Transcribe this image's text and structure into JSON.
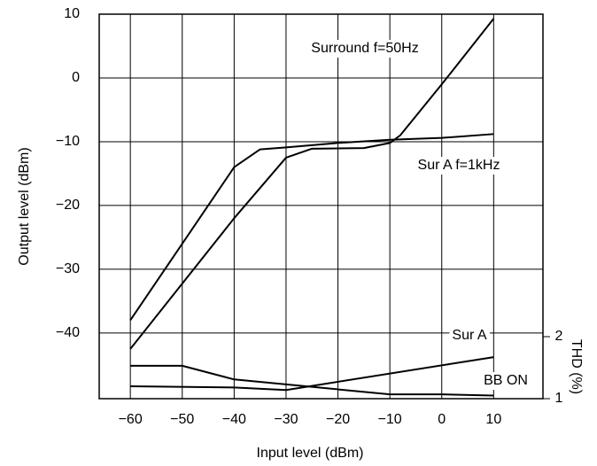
{
  "chart_data": {
    "type": "line",
    "x_label": "Input level (dBm)",
    "y_label": "Output level (dBm)",
    "y2_label": "THD (%)",
    "xlim": [
      -66,
      19.5
    ],
    "xticks": [
      {
        "value": -60,
        "label": "−60"
      },
      {
        "value": -50,
        "label": "−50"
      },
      {
        "value": -40,
        "label": "−40"
      },
      {
        "value": -30,
        "label": "−30"
      },
      {
        "value": -20,
        "label": "−20"
      },
      {
        "value": -10,
        "label": "−10"
      },
      0,
      10
    ],
    "ylim": [
      -50.3,
      10
    ],
    "yticks": [
      {
        "value": -40,
        "label": "−40"
      },
      {
        "value": -30,
        "label": "−30"
      },
      {
        "value": -20,
        "label": "−20"
      },
      {
        "value": -10,
        "label": "−10"
      },
      0,
      10
    ],
    "y2lim": [
      1,
      7.2
    ],
    "y2ticks": [
      1,
      2
    ],
    "grid": true,
    "series": [
      {
        "name": "Surround f=50Hz",
        "color": "#000000",
        "x": [
          -60,
          -40,
          -30,
          -25,
          -15,
          -10,
          -8,
          0,
          10
        ],
        "values": [
          -42.5,
          -22,
          -12.5,
          -11.1,
          -11,
          -10.2,
          -9,
          -1,
          9.3
        ]
      },
      {
        "name": "Sur A f=1kHz",
        "color": "#000000",
        "x": [
          -60,
          -40,
          -35,
          -30,
          -20,
          -10,
          0,
          10
        ],
        "values": [
          -38,
          -14,
          -11.2,
          -10.9,
          -10.2,
          -9.7,
          -9.4,
          -8.8
        ]
      },
      {
        "name": "Sur A",
        "color": "#000000",
        "axis": "y2",
        "x": [
          -60,
          -40,
          -30,
          10
        ],
        "values": [
          1.2,
          1.18,
          1.14,
          1.67
        ]
      },
      {
        "name": "BB ON",
        "color": "#000000",
        "axis": "y2",
        "x": [
          -60,
          -50,
          -40,
          -30,
          -10,
          0,
          10
        ],
        "values": [
          1.53,
          1.53,
          1.31,
          1.23,
          1.07,
          1.07,
          1.05
        ]
      }
    ]
  }
}
